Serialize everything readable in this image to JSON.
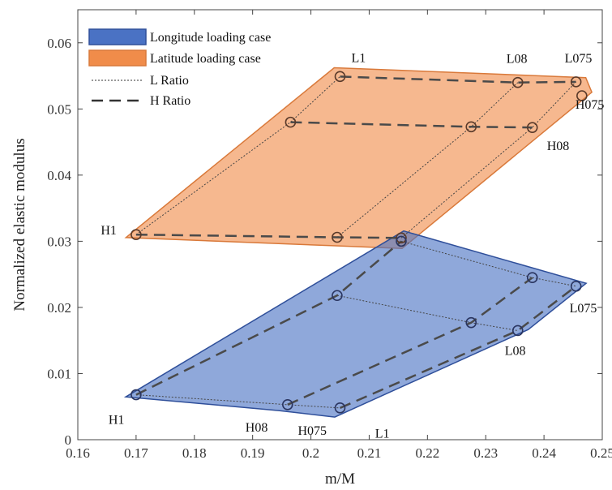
{
  "chart_data": {
    "type": "scatter",
    "xlabel": "m/M",
    "ylabel": "Normalized elastic modulus",
    "xlim": [
      0.16,
      0.25
    ],
    "ylim": [
      0,
      0.065
    ],
    "xticks": [
      "0.16",
      "0.17",
      "0.18",
      "0.19",
      "0.2",
      "0.21",
      "0.22",
      "0.23",
      "0.24",
      "0.25"
    ],
    "yticks": [
      "0",
      "0.01",
      "0.02",
      "0.03",
      "0.04",
      "0.05",
      "0.06"
    ],
    "grid": false,
    "legend": {
      "placement": "top-left",
      "entries": [
        {
          "label": "Longitude loading case",
          "kind": "patch",
          "color": "#4a72c4"
        },
        {
          "label": "Latitude loading case",
          "kind": "patch",
          "color": "#f08c4a"
        },
        {
          "label": "L Ratio",
          "kind": "dotted"
        },
        {
          "label": "H Ratio",
          "kind": "dashed"
        }
      ]
    },
    "regions": [
      {
        "name": "Latitude loading case",
        "color": "#f08c4a",
        "edge": "#d9793a",
        "points": [
          {
            "label": "H1",
            "x": 0.17,
            "y": 0.031
          },
          {
            "label": "",
            "x": 0.2045,
            "y": 0.0306
          },
          {
            "label": "",
            "x": 0.2155,
            "y": 0.0305
          },
          {
            "label": "",
            "x": 0.1965,
            "y": 0.048
          },
          {
            "label": "",
            "x": 0.2275,
            "y": 0.0473
          },
          {
            "label": "H08",
            "x": 0.238,
            "y": 0.0472
          },
          {
            "label": "L1",
            "x": 0.205,
            "y": 0.0549
          },
          {
            "label": "L08",
            "x": 0.2355,
            "y": 0.054
          },
          {
            "label": "L075",
            "x": 0.2455,
            "y": 0.0541
          },
          {
            "label": "H075",
            "x": 0.2465,
            "y": 0.052
          }
        ],
        "h_ratio_lines": [
          [
            [
              0.17,
              0.031
            ],
            [
              0.2045,
              0.0306
            ],
            [
              0.2155,
              0.0305
            ]
          ],
          [
            [
              0.1965,
              0.048
            ],
            [
              0.2275,
              0.0473
            ],
            [
              0.238,
              0.0472
            ]
          ],
          [
            [
              0.205,
              0.0549
            ],
            [
              0.2355,
              0.054
            ],
            [
              0.2455,
              0.0541
            ]
          ]
        ],
        "l_ratio_lines": [
          [
            [
              0.17,
              0.031
            ],
            [
              0.1965,
              0.048
            ],
            [
              0.205,
              0.0549
            ]
          ],
          [
            [
              0.2045,
              0.0306
            ],
            [
              0.2275,
              0.0473
            ],
            [
              0.2355,
              0.054
            ]
          ],
          [
            [
              0.2155,
              0.0305
            ],
            [
              0.238,
              0.0472
            ],
            [
              0.2455,
              0.0541
            ]
          ]
        ]
      },
      {
        "name": "Longitude loading case",
        "color": "#4a72c4",
        "edge": "#2f4f9a",
        "points": [
          {
            "label": "H1",
            "x": 0.17,
            "y": 0.0068
          },
          {
            "label": "H08",
            "x": 0.196,
            "y": 0.0053
          },
          {
            "label": "H075",
            "x": 0.205,
            "y": 0.0048
          },
          {
            "label": "",
            "x": 0.2045,
            "y": 0.0218
          },
          {
            "label": "",
            "x": 0.2275,
            "y": 0.0177
          },
          {
            "label": "L08",
            "x": 0.2355,
            "y": 0.0165
          },
          {
            "label": "",
            "x": 0.2155,
            "y": 0.03
          },
          {
            "label": "",
            "x": 0.238,
            "y": 0.0245
          },
          {
            "label": "L075",
            "x": 0.2455,
            "y": 0.0232
          },
          {
            "label": "L1",
            "x": 0.206,
            "y": 0.0035
          }
        ],
        "h_ratio_lines": [
          [
            [
              0.17,
              0.0068
            ],
            [
              0.2045,
              0.0218
            ],
            [
              0.2155,
              0.03
            ]
          ],
          [
            [
              0.196,
              0.0053
            ],
            [
              0.2275,
              0.0177
            ],
            [
              0.238,
              0.0245
            ]
          ],
          [
            [
              0.205,
              0.0048
            ],
            [
              0.2355,
              0.0165
            ],
            [
              0.2455,
              0.0232
            ]
          ]
        ],
        "l_ratio_lines": [
          [
            [
              0.17,
              0.0068
            ],
            [
              0.196,
              0.0053
            ],
            [
              0.205,
              0.0048
            ]
          ],
          [
            [
              0.2045,
              0.0218
            ],
            [
              0.2275,
              0.0177
            ],
            [
              0.2355,
              0.0165
            ]
          ],
          [
            [
              0.2155,
              0.03
            ],
            [
              0.238,
              0.0245
            ],
            [
              0.2455,
              0.0232
            ]
          ]
        ]
      }
    ]
  }
}
